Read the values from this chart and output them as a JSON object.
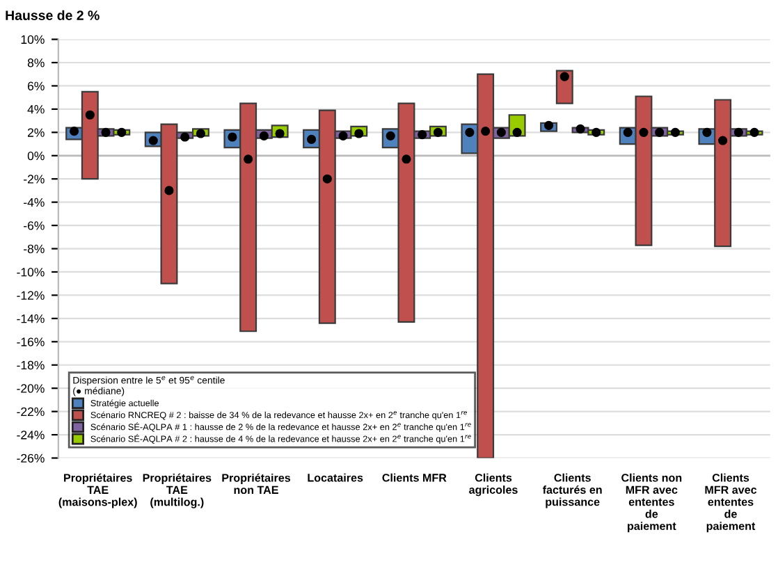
{
  "chart_data": {
    "type": "bar",
    "title": "Hausse de 2 %",
    "legend_title": "Dispersion entre le 5$^{e}$ et 95$^{e}$ centile\n(● médiane)",
    "categories": [
      "Propriétaires\nTAE\n(maisons-plex)",
      "Propriétaires\nTAE\n(multilog.)",
      "Propriétaires\nnon TAE",
      "Locataires",
      "Clients MFR",
      "Clients\nagricoles",
      "Clients\nfacturés en\npuissance",
      "Clients non\nMFR avec\nententes\nde\npaiement",
      "Clients\nMFR avec\nententes\nde\npaiement"
    ],
    "series": [
      {
        "name": "Stratégie actuelle",
        "color": "#4f81bd",
        "base": [
          1.4,
          0.8,
          0.7,
          0.7,
          0.7,
          0.2,
          2.1,
          1.0,
          1.0
        ],
        "values": [
          1.0,
          1.2,
          1.5,
          1.5,
          1.6,
          2.5,
          0.7,
          1.4,
          1.3
        ]
      },
      {
        "name": "Scénario RNCREQ # 2 : baisse de 34 % de la redevance et hausse 2x+ en 2$^{e}$ tranche qu'en 1$^{re}$",
        "color": "#c0504d",
        "base": [
          -2.0,
          -11.0,
          -15.1,
          -14.4,
          -14.3,
          -26.0,
          4.5,
          -7.7,
          -7.8
        ],
        "values": [
          7.5,
          13.7,
          19.6,
          18.3,
          18.8,
          33.0,
          2.8,
          12.8,
          12.6
        ]
      },
      {
        "name": "Scénario SÉ-AQLPA # 1 : hausse de 2 % de la redevance et hausse 2x+ en 2$^{e}$ tranche qu'en 1$^{re}$",
        "color": "#8064a2",
        "base": [
          1.7,
          1.5,
          1.5,
          1.5,
          1.5,
          1.5,
          2.0,
          1.7,
          1.7
        ],
        "values": [
          0.6,
          0.5,
          0.7,
          0.6,
          0.6,
          0.9,
          0.4,
          0.7,
          0.6
        ]
      },
      {
        "name": "Scénario SÉ-AQLPA # 2 : hausse de 4 % de la redevance et hausse 2x+ en 2$^{e}$ tranche qu'en 1$^{re}$",
        "color": "#99cc00",
        "base": [
          1.8,
          1.7,
          1.6,
          1.7,
          1.7,
          1.7,
          1.8,
          1.8,
          1.8
        ],
        "values": [
          0.4,
          0.6,
          1.0,
          0.8,
          0.8,
          1.8,
          0.4,
          0.3,
          0.3
        ]
      },
      {
        "type": "scatter",
        "color": "#000000",
        "x": [
          "Propriétaires\nTAE\n(maisons-plex)",
          "Propriétaires\nTAE\n(multilog.)",
          "Propriétaires\nnon TAE",
          "Locataires",
          "Clients MFR",
          "Clients\nagricoles",
          "Clients\nfacturés en\npuissance",
          "Clients non\nMFR avec\nententes\nde\npaiement",
          "Clients\nMFR avec\nententes\nde\npaiement"
        ],
        "values": [
          2.1,
          1.3,
          1.6,
          1.4,
          1.7,
          2.0,
          2.6,
          2.0,
          2.0
        ]
      },
      {
        "type": "scatter",
        "color": "#000000",
        "x": [
          "Propriétaires\nTAE\n(maisons-plex)",
          "Propriétaires\nTAE\n(multilog.)",
          "Propriétaires\nnon TAE",
          "Locataires",
          "Clients MFR",
          "Clients\nagricoles",
          "Clients\nfacturés en\npuissance",
          "Clients non\nMFR avec\nententes\nde\npaiement",
          "Clients\nMFR avec\nententes\nde\npaiement"
        ],
        "values": [
          3.5,
          -3.0,
          -0.3,
          -2.0,
          -0.3,
          2.1,
          6.8,
          2.0,
          1.3
        ]
      },
      {
        "type": "scatter",
        "color": "#000000",
        "x": [
          "Propriétaires\nTAE\n(maisons-plex)",
          "Propriétaires\nTAE\n(multilog.)",
          "Propriétaires\nnon TAE",
          "Locataires",
          "Clients MFR",
          "Clients\nagricoles",
          "Clients\nfacturés en\npuissance",
          "Clients non\nMFR avec\nententes\nde\npaiement",
          "Clients\nMFR avec\nententes\nde\npaiement"
        ],
        "values": [
          2.0,
          1.6,
          1.7,
          1.7,
          1.8,
          2.0,
          2.3,
          2.0,
          2.0
        ]
      },
      {
        "type": "scatter",
        "color": "#000000",
        "x": [
          "Propriétaires\nTAE\n(maisons-plex)",
          "Propriétaires\nTAE\n(multilog.)",
          "Propriétaires\nnon TAE",
          "Locataires",
          "Clients MFR",
          "Clients\nagricoles",
          "Clients\nfacturés en\npuissance",
          "Clients non\nMFR avec\nententes\nde\npaiement",
          "Clients\nMFR avec\nententes\nde\npaiement"
        ],
        "values": [
          2.0,
          1.9,
          1.9,
          1.9,
          2.0,
          2.0,
          2.0,
          2.0,
          2.0
        ]
      }
    ],
    "ylim": [
      -26,
      10
    ],
    "yticks": [
      {
        "value": -26,
        "label": "-26%"
      },
      {
        "value": -24,
        "label": "-24%"
      },
      {
        "value": -22,
        "label": "-22%"
      },
      {
        "value": -20,
        "label": "-20%"
      },
      {
        "value": -18,
        "label": "-18%"
      },
      {
        "value": -16,
        "label": "-16%"
      },
      {
        "value": -14,
        "label": "-14%"
      },
      {
        "value": -12,
        "label": "-12%"
      },
      {
        "value": -10,
        "label": "-10%"
      },
      {
        "value": -8,
        "label": "-8%"
      },
      {
        "value": -6,
        "label": "-6%"
      },
      {
        "value": -4,
        "label": "-4%"
      },
      {
        "value": -2,
        "label": "-2%"
      },
      {
        "value": 0,
        "label": "0%"
      },
      {
        "value": 2,
        "label": "2%"
      },
      {
        "value": 4,
        "label": "4%"
      },
      {
        "value": 6,
        "label": "6%"
      },
      {
        "value": 8,
        "label": "8%"
      },
      {
        "value": 10,
        "label": "10%"
      }
    ],
    "grid": "y",
    "legend": "bottom left",
    "marker": "circle"
  }
}
